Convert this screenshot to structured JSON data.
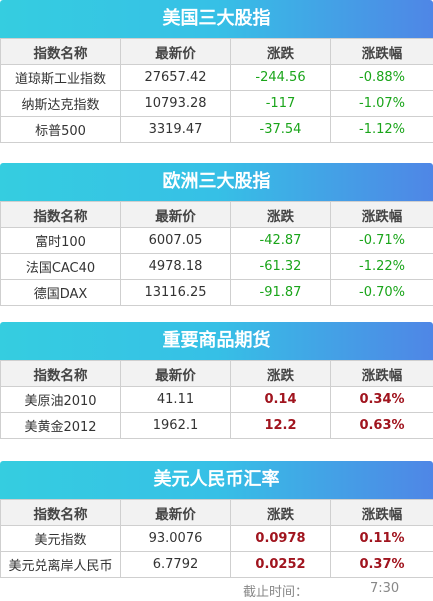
{
  "sections": [
    {
      "title": "美国三大股指",
      "headers": [
        "指数名称",
        "最新价",
        "涨跌",
        "涨跌幅"
      ],
      "rows": [
        {
          "name": "道琼斯工业指数",
          "price": "27657.42",
          "change": "-244.56",
          "pct": "-0.88%",
          "dir": "down"
        },
        {
          "name": "纳斯达克指数",
          "price": "10793.28",
          "change": "-117",
          "pct": "-1.07%",
          "dir": "down"
        },
        {
          "name": "标普500",
          "price": "3319.47",
          "change": "-37.54",
          "pct": "-1.12%",
          "dir": "down"
        }
      ]
    },
    {
      "title": "欧洲三大股指",
      "headers": [
        "指数名称",
        "最新价",
        "涨跌",
        "涨跌幅"
      ],
      "rows": [
        {
          "name": "富时100",
          "price": "6007.05",
          "change": "-42.87",
          "pct": "-0.71%",
          "dir": "down"
        },
        {
          "name": "法国CAC40",
          "price": "4978.18",
          "change": "-61.32",
          "pct": "-1.22%",
          "dir": "down"
        },
        {
          "name": "德国DAX",
          "price": "13116.25",
          "change": "-91.87",
          "pct": "-0.70%",
          "dir": "down"
        }
      ]
    },
    {
      "title": "重要商品期货",
      "headers": [
        "指数名称",
        "最新价",
        "涨跌",
        "涨跌幅"
      ],
      "rows": [
        {
          "name": "美原油2010",
          "price": "41.11",
          "change": "0.14",
          "pct": "0.34%",
          "dir": "up"
        },
        {
          "name": "美黄金2012",
          "price": "1962.1",
          "change": "12.2",
          "pct": "0.63%",
          "dir": "up"
        }
      ]
    },
    {
      "title": "美元人民币汇率",
      "headers": [
        "指数名称",
        "最新价",
        "涨跌",
        "涨跌幅"
      ],
      "rows": [
        {
          "name": "美元指数",
          "price": "93.0076",
          "change": "0.0978",
          "pct": "0.11%",
          "dir": "up"
        },
        {
          "name": "美元兑离岸人民币",
          "price": "6.7792",
          "change": "0.0252",
          "pct": "0.37%",
          "dir": "up"
        }
      ]
    }
  ],
  "footer": {
    "label": "截止时间：",
    "time": "7:30"
  },
  "colors": {
    "banner_start": "#35cde0",
    "banner_end": "#4f86e6",
    "down": "#1aa51a",
    "up": "#a0141e"
  }
}
